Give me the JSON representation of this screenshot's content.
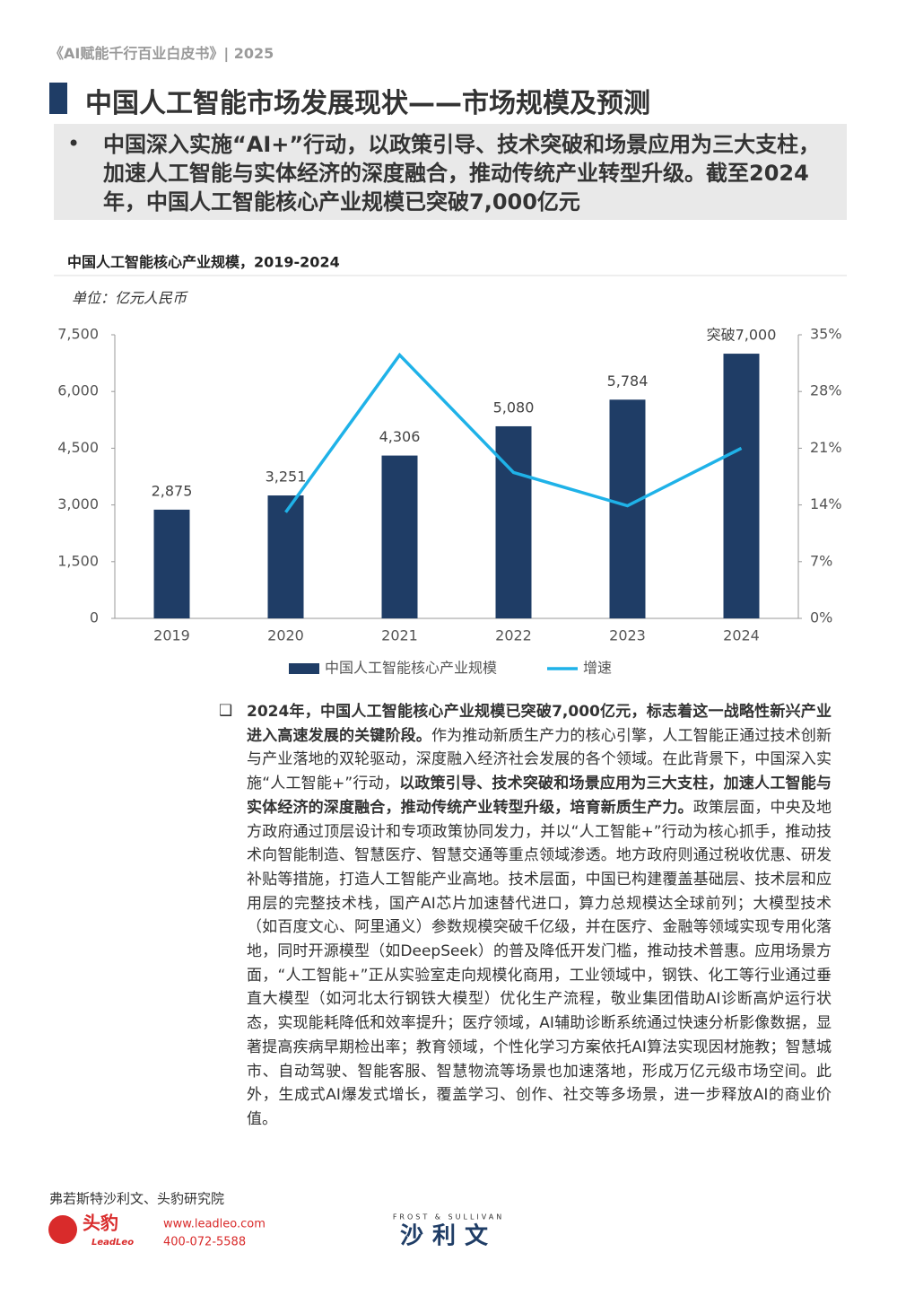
{
  "header": {
    "doc": "《AI赋能千行百业白皮书》| 2025",
    "title": "中国人工智能市场发展现状——市场规模及预测",
    "summary": "中国深入实施“AI+”行动，以政策引导、技术突破和场景应用为三大支柱，加速人工智能与实体经济的深度融合，推动传统产业转型升级。截至2024年，中国人工智能核心产业规模已突破7,000亿元"
  },
  "chart_data": {
    "type": "bar",
    "title": "中国人工智能核心产业规模，2019-2024",
    "unit_label": "单位：亿元人民币",
    "categories": [
      "2019",
      "2020",
      "2021",
      "2022",
      "2023",
      "2024"
    ],
    "series": [
      {
        "name": "中国人工智能核心产业规模",
        "type": "bar",
        "color": "#1f3d66",
        "values": [
          2875,
          3251,
          4306,
          5080,
          5784,
          7000
        ],
        "value_labels": [
          "2,875",
          "3,251",
          "4,306",
          "5,080",
          "5,784",
          "突破7,000"
        ]
      },
      {
        "name": "增速",
        "type": "line",
        "axis": "y2",
        "color": "#1fb2e8",
        "values": [
          null,
          13.1,
          32.5,
          18.0,
          13.9,
          21.0
        ]
      }
    ],
    "ylim": [
      0,
      7500
    ],
    "yticks": [
      0,
      {
        "value": 1500,
        "label": "1,500"
      },
      {
        "value": 3000,
        "label": "3,000"
      },
      {
        "value": 4500,
        "label": "4,500"
      },
      {
        "value": 6000,
        "label": "6,000"
      },
      {
        "value": 7500,
        "label": "7,500"
      }
    ],
    "y2lim": [
      0,
      35
    ],
    "y2ticks": [
      {
        "value": 0,
        "label": "0%"
      },
      {
        "value": 7,
        "label": "7%"
      },
      {
        "value": 14,
        "label": "14%"
      },
      {
        "value": 21,
        "label": "21%"
      },
      {
        "value": 28,
        "label": "28%"
      },
      {
        "value": 35,
        "label": "35%"
      }
    ],
    "legend": "bottom"
  },
  "body": {
    "runs": [
      {
        "text": "2024年，中国人工智能核心产业规模已突破7,000亿元，标志着这一战略性新兴产业进入高速发展的关键阶段。",
        "bold": true
      },
      {
        "text": "作为推动新质生产力的核心引擎，人工智能正通过技术创新与产业落地的双轮驱动，深度融入经济社会发展的各个领域。在此背景下，中国深入实施“人工智能+”行动，",
        "bold": false
      },
      {
        "text": "以政策引导、技术突破和场景应用为三大支柱，加速人工智能与实体经济的深度融合，推动传统产业转型升级，培育新质生产力。",
        "bold": true
      },
      {
        "text": "政策层面，中央及地方政府通过顶层设计和专项政策协同发力，并以“人工智能+”行动为核心抓手，推动技术向智能制造、智慧医疗、智慧交通等重点领域渗透。地方政府则通过税收优惠、研发补贴等措施，打造人工智能产业高地。技术层面，中国已构建覆盖基础层、技术层和应用层的完整技术栈，国产AI芯片加速替代进口，算力总规模达全球前列；大模型技术（如百度文心、阿里通义）参数规模突破千亿级，并在医疗、金融等领域实现专用化落地，同时开源模型（如DeepSeek）的普及降低开发门槛，推动技术普惠。应用场景方面，“人工智能+”正从实验室走向规模化商用，工业领域中，钢铁、化工等行业通过垂直大模型（如河北太行钢铁大模型）优化生产流程，敬业集团借助AI诊断高炉运行状态，实现能耗降低和效率提升；医疗领域，AI辅助诊断系统通过快速分析影像数据，显著提高疾病早期检出率；教育领域，个性化学习方案依托AI算法实现因材施教；智慧城市、自动驾驶、智能客服、智慧物流等场景也加速落地，形成万亿元级市场空间。此外，生成式AI爆发式增长，覆盖学习、创作、社交等多场景，进一步释放AI的商业价值。",
        "bold": false
      }
    ]
  },
  "footer": {
    "source": "弗若斯特沙利文、头豹研究院",
    "brand": "头豹",
    "brand_en": "LeadLeo",
    "website": "www.leadleo.com",
    "phone": "400-072-5588",
    "partner_en": "FROST & SULLIVAN",
    "partner": "沙利文"
  }
}
